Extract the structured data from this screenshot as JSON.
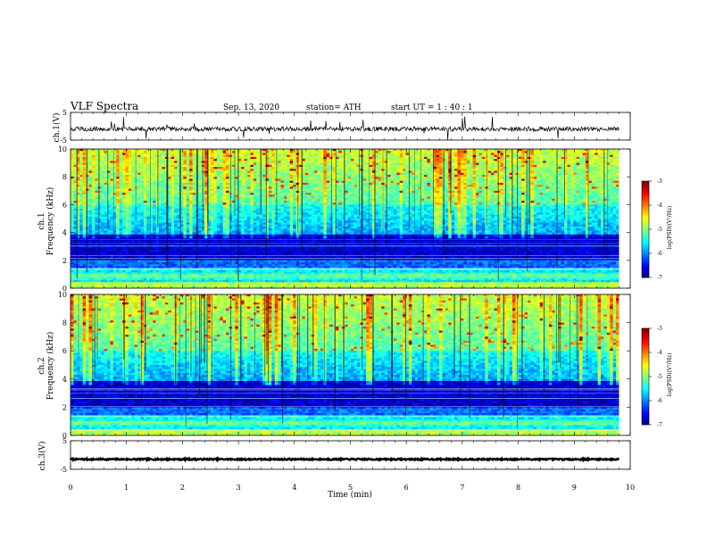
{
  "header": {
    "title": "VLF Spectra",
    "date": "Sep. 13, 2020",
    "station": "station= ATH",
    "start": "start  UT  =   1 : 40 : 1"
  },
  "chart_data": [
    {
      "type": "line",
      "name": "ch1-waveform",
      "ylabel": "ch.1(V)",
      "xlim": [
        0,
        10
      ],
      "ylim": [
        -5,
        5
      ],
      "yticks": [
        "5",
        "-5"
      ],
      "baseline_v": -1.0,
      "end_min": 9.8
    },
    {
      "type": "heatmap",
      "name": "ch1-spectrogram",
      "ylabel_line1": "ch.1",
      "ylabel_line2": "Frequency (kHz)",
      "xlim": [
        0,
        10
      ],
      "ylim": [
        0,
        10
      ],
      "yticks": [
        "10",
        "8",
        "6",
        "4",
        "2",
        "0"
      ],
      "end_min": 9.8,
      "colorbar": {
        "label": "log(PSD)(V²/Hz)",
        "range": [
          -7,
          -3
        ],
        "ticks": [
          "-3",
          "-4",
          "-5",
          "-6",
          "-7"
        ]
      }
    },
    {
      "type": "heatmap",
      "name": "ch2-spectrogram",
      "ylabel_line1": "ch.2",
      "ylabel_line2": "Frequency (kHz)",
      "xlim": [
        0,
        10
      ],
      "ylim": [
        0,
        10
      ],
      "yticks": [
        "10",
        "8",
        "6",
        "4",
        "2",
        "0"
      ],
      "end_min": 9.8,
      "colorbar": {
        "label": "log(PSD)(V²/Hz)",
        "range": [
          -7,
          -3
        ],
        "ticks": [
          "-3",
          "-4",
          "-5",
          "-6",
          "-7"
        ]
      }
    },
    {
      "type": "line",
      "name": "ch3-waveform",
      "ylabel": "ch.3(V)",
      "xlim": [
        0,
        10
      ],
      "ylim": [
        -5,
        5
      ],
      "yticks": [
        "5",
        "-5"
      ],
      "baseline_v": -1.5,
      "end_min": 9.8,
      "xlabel": "Time (min)",
      "xticks": [
        "0",
        "1",
        "2",
        "3",
        "4",
        "5",
        "6",
        "7",
        "8",
        "9",
        "10"
      ]
    }
  ]
}
